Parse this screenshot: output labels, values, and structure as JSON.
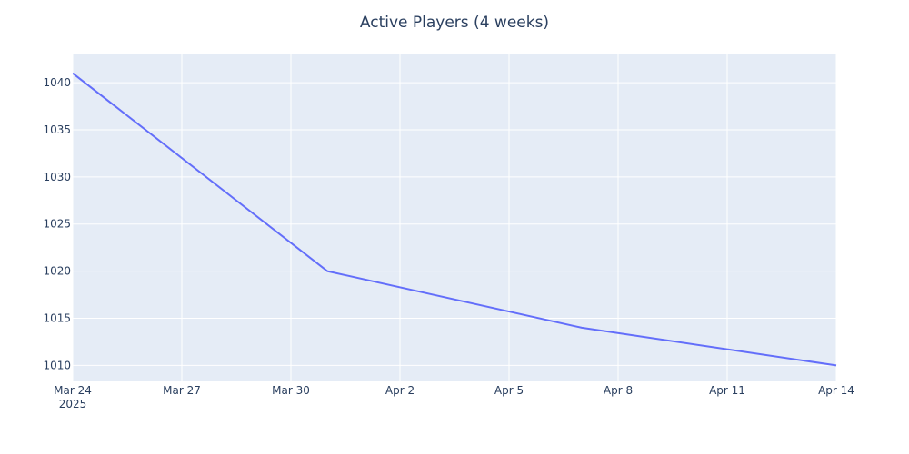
{
  "chart_data": {
    "type": "line",
    "title": "Active Players (4 weeks)",
    "xlabel": "",
    "ylabel": "",
    "x_axis_type": "date",
    "xlim": [
      "2025-03-24",
      "2025-04-14"
    ],
    "ylim": [
      1008.3,
      1043.0
    ],
    "x_ticks": [
      {
        "date": "2025-03-24",
        "label": "Mar 24",
        "sublabel": "2025"
      },
      {
        "date": "2025-03-27",
        "label": "Mar 27",
        "sublabel": ""
      },
      {
        "date": "2025-03-30",
        "label": "Mar 30",
        "sublabel": ""
      },
      {
        "date": "2025-04-02",
        "label": "Apr 2",
        "sublabel": ""
      },
      {
        "date": "2025-04-05",
        "label": "Apr 5",
        "sublabel": ""
      },
      {
        "date": "2025-04-08",
        "label": "Apr 8",
        "sublabel": ""
      },
      {
        "date": "2025-04-11",
        "label": "Apr 11",
        "sublabel": ""
      },
      {
        "date": "2025-04-14",
        "label": "Apr 14",
        "sublabel": ""
      }
    ],
    "y_ticks": [
      1010,
      1015,
      1020,
      1025,
      1030,
      1035,
      1040
    ],
    "grid": true,
    "legend": "none",
    "series": [
      {
        "name": "",
        "color": "#636efa",
        "x": [
          "2025-03-24",
          "2025-03-31",
          "2025-04-07",
          "2025-04-14"
        ],
        "y": [
          1041,
          1020,
          1014,
          1010
        ]
      }
    ],
    "colors": {
      "plot_bg": "#e5ecf6",
      "grid": "#ffffff",
      "text": "#2a3f5f",
      "line": "#636efa"
    }
  }
}
